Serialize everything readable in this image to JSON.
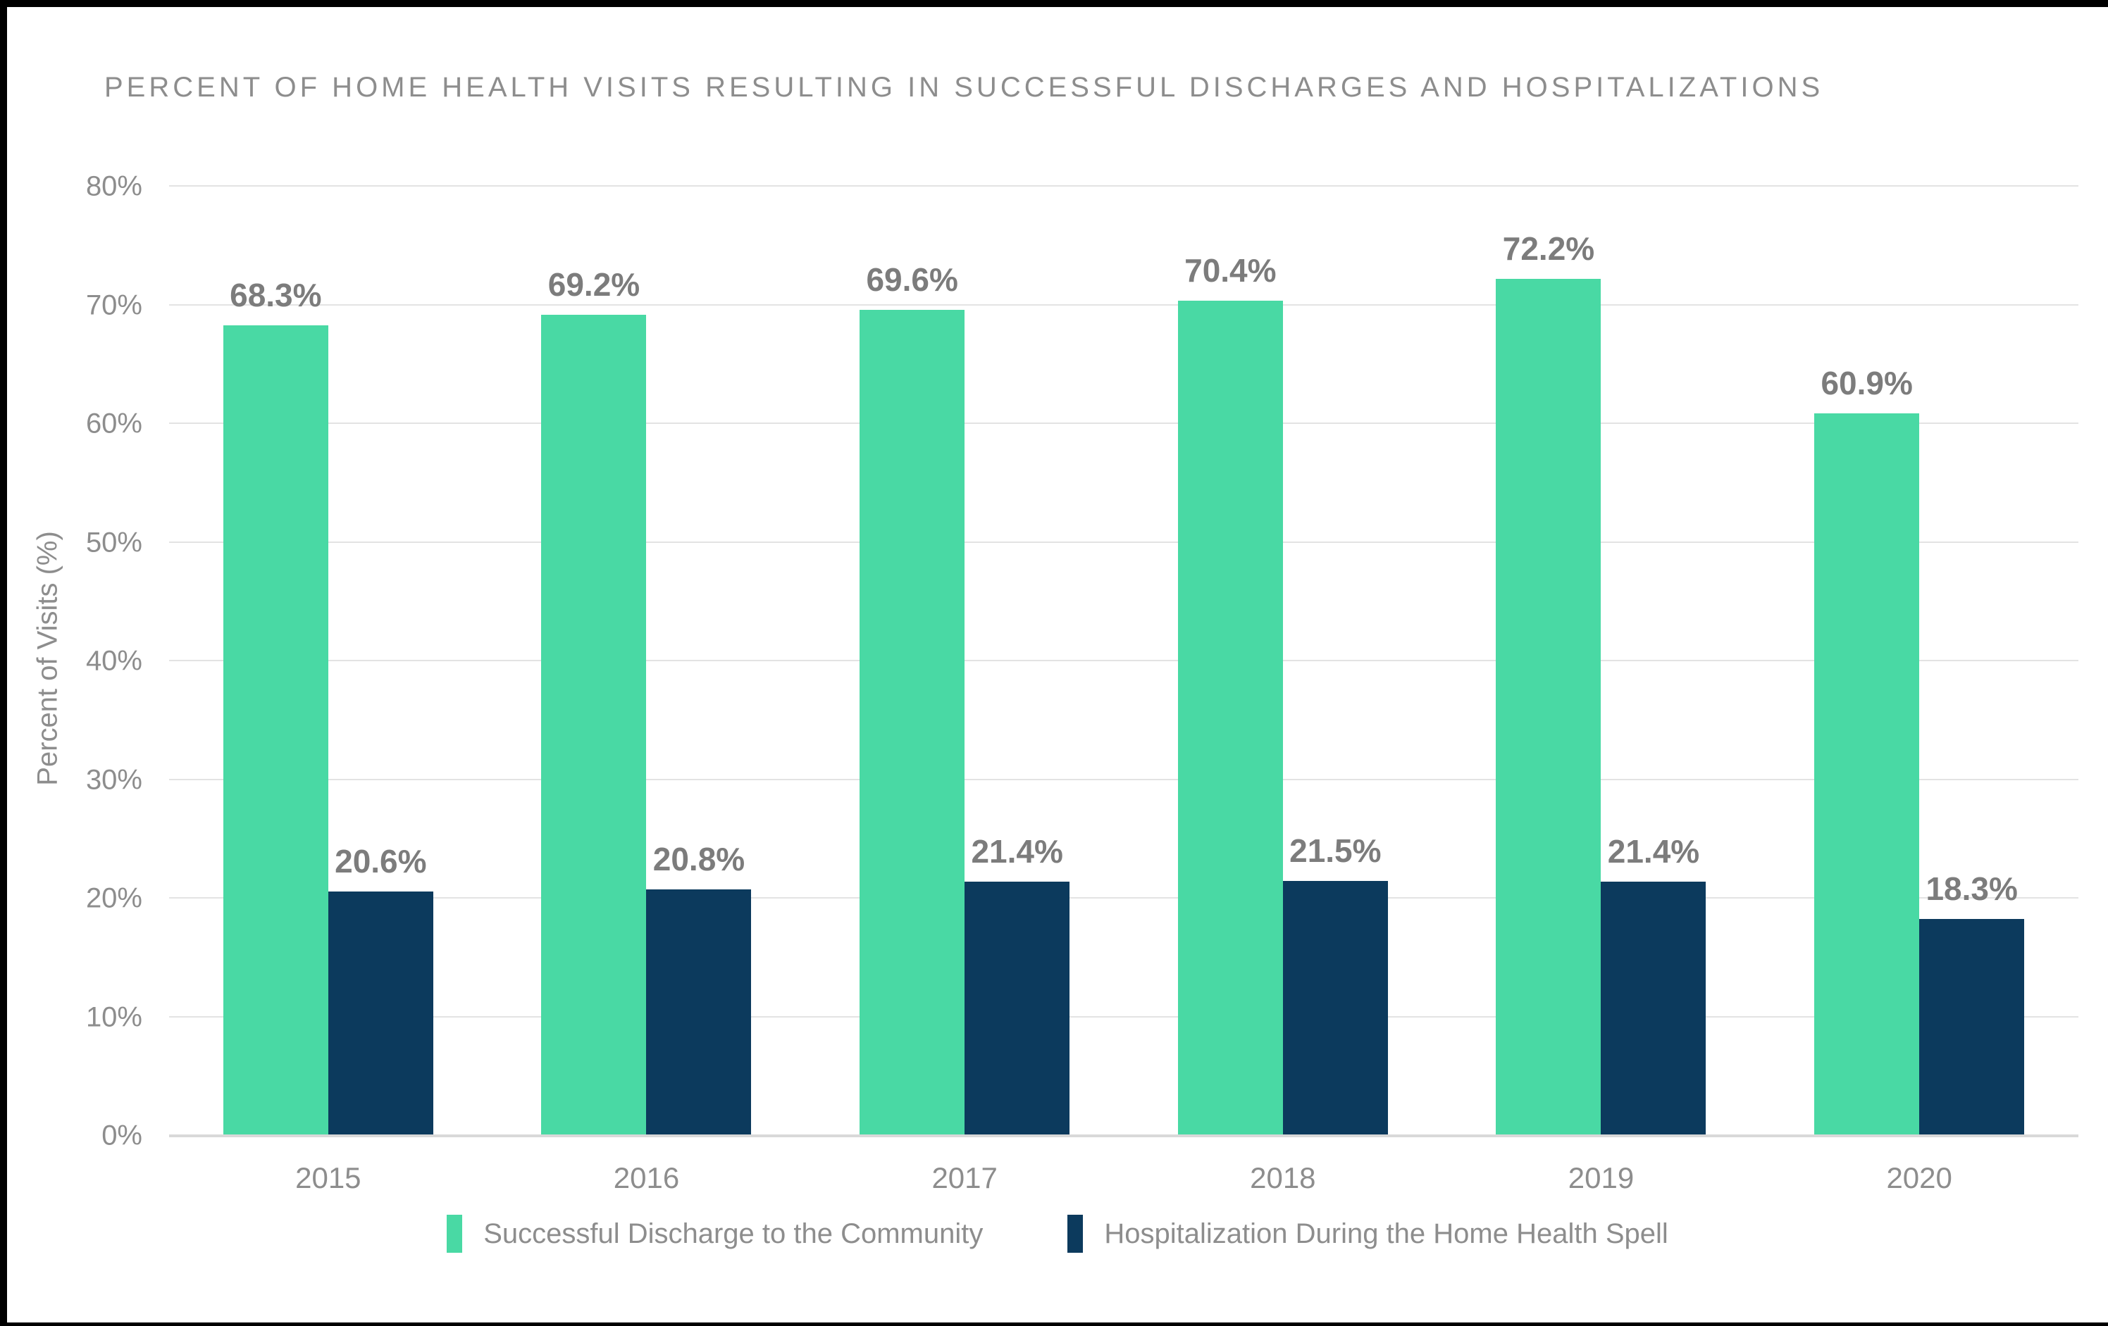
{
  "title": "PERCENT OF HOME HEALTH VISITS RESULTING IN SUCCESSFUL DISCHARGES AND HOSPITALIZATIONS",
  "chart_data": {
    "type": "bar",
    "title": "PERCENT OF HOME HEALTH VISITS RESULTING IN SUCCESSFUL DISCHARGES AND HOSPITALIZATIONS",
    "categories": [
      "2015",
      "2016",
      "2017",
      "2018",
      "2019",
      "2020"
    ],
    "series": [
      {
        "name": "Successful Discharge to the Community",
        "color": "#49d9a4",
        "values": [
          68.3,
          69.2,
          69.6,
          70.4,
          72.2,
          60.9
        ],
        "value_labels": [
          "68.3%",
          "69.2%",
          "69.6%",
          "70.4%",
          "72.2%",
          "60.9%"
        ]
      },
      {
        "name": "Hospitalization During the Home Health Spell",
        "color": "#0c3a5d",
        "values": [
          20.6,
          20.8,
          21.4,
          21.5,
          21.4,
          18.3
        ],
        "value_labels": [
          "20.6%",
          "20.8%",
          "21.4%",
          "21.5%",
          "21.4%",
          "18.3%"
        ]
      }
    ],
    "xlabel": "",
    "ylabel": "Percent of Visits (%)",
    "ylim": [
      0,
      80
    ],
    "ytick_step": 10,
    "ytick_labels": [
      "0%",
      "10%",
      "20%",
      "30%",
      "40%",
      "50%",
      "60%",
      "70%",
      "80%"
    ],
    "grid": true,
    "legend_position": "bottom"
  },
  "colors": {
    "background": "#ffffff",
    "frame_border": "#000000",
    "grid_line": "#e3e3e3",
    "axis_line": "#d9d9d9",
    "text_gray": "#8d8d8d",
    "value_label_gray": "#7c7c7c"
  }
}
